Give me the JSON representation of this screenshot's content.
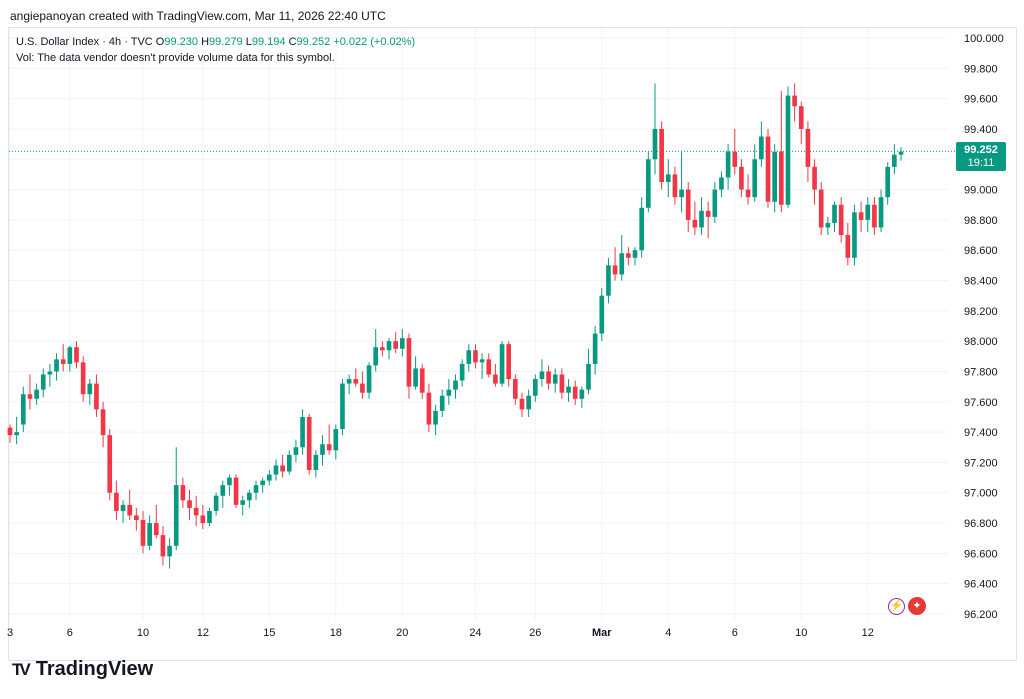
{
  "header": {
    "caption": "angiepanoyan created with TradingView.com, Mar 11, 2026 22:40 UTC"
  },
  "legend": {
    "symbol": "U.S. Dollar Index · 4h · TVC",
    "o_label": "O",
    "o_value": "99.230",
    "h_label": "H",
    "h_value": "99.279",
    "l_label": "L",
    "l_value": "99.194",
    "c_label": "C",
    "c_value": "99.252",
    "change": "+0.022 (+0.02%)",
    "vol_note": "Vol: The data vendor doesn't provide volume data for this symbol."
  },
  "last_price": {
    "price": "99.252",
    "countdown": "19:11",
    "value": 99.252
  },
  "colors": {
    "up": "#089981",
    "down": "#f23645",
    "grid": "#f0f3fa",
    "text": "#131722"
  },
  "icons": {
    "bolt": "lightning-icon",
    "flag": "us-flag-icon"
  },
  "branding": {
    "logo_text": "TradingView",
    "logo_mark": "TV"
  },
  "chart_data": {
    "type": "candlestick",
    "yaxis": {
      "ticks": [
        "100.000",
        "99.800",
        "99.600",
        "99.400",
        "99.200",
        "99.000",
        "98.800",
        "98.600",
        "98.400",
        "98.200",
        "98.000",
        "97.800",
        "97.600",
        "97.400",
        "97.200",
        "97.000",
        "96.800",
        "96.600",
        "96.400",
        "96.200"
      ],
      "range": [
        96.2,
        100.0
      ]
    },
    "xaxis": {
      "ticks": [
        "3",
        "6",
        "10",
        "12",
        "15",
        "18",
        "20",
        "24",
        "26",
        "Mar",
        "4",
        "6",
        "10",
        "12"
      ]
    },
    "ohlc": [
      [
        97.43,
        97.45,
        97.33,
        97.38
      ],
      [
        97.38,
        97.5,
        97.32,
        97.4
      ],
      [
        97.45,
        97.7,
        97.4,
        97.65
      ],
      [
        97.65,
        97.78,
        97.55,
        97.62
      ],
      [
        97.62,
        97.72,
        97.58,
        97.68
      ],
      [
        97.68,
        97.82,
        97.63,
        97.78
      ],
      [
        97.78,
        97.85,
        97.7,
        97.8
      ],
      [
        97.8,
        97.92,
        97.74,
        97.88
      ],
      [
        97.88,
        97.98,
        97.8,
        97.85
      ],
      [
        97.85,
        97.97,
        97.8,
        97.96
      ],
      [
        97.96,
        98.0,
        97.82,
        97.86
      ],
      [
        97.86,
        97.9,
        97.6,
        97.65
      ],
      [
        97.65,
        97.75,
        97.58,
        97.72
      ],
      [
        97.72,
        97.78,
        97.5,
        97.55
      ],
      [
        97.55,
        97.6,
        97.3,
        97.38
      ],
      [
        97.38,
        97.42,
        96.95,
        97.0
      ],
      [
        97.0,
        97.08,
        96.82,
        96.88
      ],
      [
        96.88,
        96.95,
        96.8,
        96.92
      ],
      [
        96.92,
        97.02,
        96.82,
        96.85
      ],
      [
        96.85,
        96.9,
        96.75,
        96.82
      ],
      [
        96.82,
        96.88,
        96.6,
        96.65
      ],
      [
        96.65,
        96.85,
        96.62,
        96.8
      ],
      [
        96.8,
        96.92,
        96.7,
        96.72
      ],
      [
        96.72,
        96.78,
        96.52,
        96.58
      ],
      [
        96.58,
        96.7,
        96.5,
        96.65
      ],
      [
        96.65,
        97.3,
        96.62,
        97.05
      ],
      [
        97.05,
        97.1,
        96.9,
        96.95
      ],
      [
        96.95,
        97.02,
        96.82,
        96.9
      ],
      [
        96.9,
        96.98,
        96.78,
        96.85
      ],
      [
        96.85,
        96.92,
        96.76,
        96.8
      ],
      [
        96.8,
        96.9,
        96.78,
        96.88
      ],
      [
        96.88,
        97.0,
        96.85,
        96.98
      ],
      [
        96.98,
        97.08,
        96.9,
        97.05
      ],
      [
        97.05,
        97.12,
        96.98,
        97.1
      ],
      [
        97.1,
        97.12,
        96.9,
        96.92
      ],
      [
        96.92,
        96.98,
        96.85,
        96.95
      ],
      [
        96.95,
        97.02,
        96.9,
        97.0
      ],
      [
        97.0,
        97.08,
        96.95,
        97.05
      ],
      [
        97.05,
        97.1,
        97.0,
        97.08
      ],
      [
        97.08,
        97.15,
        97.05,
        97.12
      ],
      [
        97.12,
        97.22,
        97.08,
        97.18
      ],
      [
        97.18,
        97.25,
        97.1,
        97.14
      ],
      [
        97.14,
        97.28,
        97.12,
        97.25
      ],
      [
        97.25,
        97.35,
        97.2,
        97.3
      ],
      [
        97.3,
        97.55,
        97.25,
        97.5
      ],
      [
        97.5,
        97.52,
        97.12,
        97.15
      ],
      [
        97.15,
        97.28,
        97.1,
        97.25
      ],
      [
        97.25,
        97.38,
        97.18,
        97.32
      ],
      [
        97.32,
        97.45,
        97.25,
        97.28
      ],
      [
        97.28,
        97.45,
        97.22,
        97.42
      ],
      [
        97.42,
        97.75,
        97.38,
        97.72
      ],
      [
        97.72,
        97.78,
        97.65,
        97.75
      ],
      [
        97.75,
        97.82,
        97.7,
        97.72
      ],
      [
        97.72,
        97.8,
        97.62,
        97.66
      ],
      [
        97.66,
        97.86,
        97.62,
        97.84
      ],
      [
        97.84,
        98.08,
        97.8,
        97.96
      ],
      [
        97.96,
        98.0,
        97.9,
        97.94
      ],
      [
        97.94,
        98.02,
        97.88,
        98.0
      ],
      [
        98.0,
        98.06,
        97.92,
        97.95
      ],
      [
        97.95,
        98.08,
        97.9,
        98.02
      ],
      [
        98.02,
        98.05,
        97.62,
        97.7
      ],
      [
        97.7,
        97.9,
        97.68,
        97.82
      ],
      [
        97.82,
        97.85,
        97.62,
        97.66
      ],
      [
        97.66,
        97.72,
        97.4,
        97.45
      ],
      [
        97.45,
        97.58,
        97.38,
        97.54
      ],
      [
        97.54,
        97.68,
        97.5,
        97.64
      ],
      [
        97.64,
        97.75,
        97.58,
        97.68
      ],
      [
        97.68,
        97.78,
        97.62,
        97.74
      ],
      [
        97.74,
        97.88,
        97.7,
        97.85
      ],
      [
        97.85,
        97.98,
        97.8,
        97.94
      ],
      [
        97.94,
        97.98,
        97.82,
        97.86
      ],
      [
        97.86,
        97.92,
        97.75,
        97.88
      ],
      [
        97.88,
        97.92,
        97.76,
        97.78
      ],
      [
        97.78,
        97.85,
        97.7,
        97.72
      ],
      [
        97.72,
        98.0,
        97.7,
        97.98
      ],
      [
        97.98,
        98.0,
        97.7,
        97.75
      ],
      [
        97.75,
        97.78,
        97.58,
        97.62
      ],
      [
        97.62,
        97.66,
        97.5,
        97.55
      ],
      [
        97.55,
        97.68,
        97.5,
        97.64
      ],
      [
        97.64,
        97.78,
        97.6,
        97.75
      ],
      [
        97.75,
        97.88,
        97.7,
        97.8
      ],
      [
        97.8,
        97.84,
        97.68,
        97.72
      ],
      [
        97.72,
        97.82,
        97.66,
        97.78
      ],
      [
        97.78,
        97.82,
        97.62,
        97.66
      ],
      [
        97.66,
        97.75,
        97.6,
        97.7
      ],
      [
        97.7,
        97.74,
        97.58,
        97.62
      ],
      [
        97.62,
        97.7,
        97.56,
        97.68
      ],
      [
        97.68,
        97.95,
        97.65,
        97.85
      ],
      [
        97.85,
        98.1,
        97.78,
        98.05
      ],
      [
        98.05,
        98.35,
        98.0,
        98.3
      ],
      [
        98.3,
        98.55,
        98.25,
        98.5
      ],
      [
        98.5,
        98.62,
        98.4,
        98.44
      ],
      [
        98.44,
        98.7,
        98.4,
        98.58
      ],
      [
        98.58,
        98.62,
        98.5,
        98.55
      ],
      [
        98.55,
        98.62,
        98.5,
        98.6
      ],
      [
        98.6,
        98.95,
        98.55,
        98.88
      ],
      [
        98.88,
        99.25,
        98.85,
        99.2
      ],
      [
        99.2,
        99.7,
        99.1,
        99.4
      ],
      [
        99.4,
        99.45,
        99.0,
        99.05
      ],
      [
        99.05,
        99.2,
        98.95,
        99.1
      ],
      [
        99.1,
        99.15,
        98.9,
        98.95
      ],
      [
        98.95,
        99.25,
        98.85,
        99.0
      ],
      [
        99.0,
        99.05,
        98.72,
        98.8
      ],
      [
        98.8,
        98.92,
        98.7,
        98.75
      ],
      [
        98.75,
        98.95,
        98.7,
        98.86
      ],
      [
        98.86,
        98.92,
        98.68,
        98.82
      ],
      [
        98.82,
        99.05,
        98.78,
        99.0
      ],
      [
        99.0,
        99.12,
        98.95,
        99.08
      ],
      [
        99.08,
        99.3,
        99.0,
        99.25
      ],
      [
        99.25,
        99.4,
        99.1,
        99.15
      ],
      [
        99.15,
        99.2,
        98.95,
        99.0
      ],
      [
        99.0,
        99.1,
        98.9,
        98.95
      ],
      [
        98.95,
        99.3,
        98.92,
        99.2
      ],
      [
        99.2,
        99.45,
        99.15,
        99.35
      ],
      [
        99.35,
        99.4,
        98.88,
        98.92
      ],
      [
        98.92,
        99.3,
        98.85,
        99.25
      ],
      [
        99.25,
        99.65,
        98.85,
        98.9
      ],
      [
        98.9,
        99.68,
        98.88,
        99.62
      ],
      [
        99.62,
        99.7,
        99.45,
        99.55
      ],
      [
        99.55,
        99.58,
        99.3,
        99.4
      ],
      [
        99.4,
        99.45,
        99.05,
        99.15
      ],
      [
        99.15,
        99.2,
        98.9,
        99.0
      ],
      [
        99.0,
        99.05,
        98.7,
        98.75
      ],
      [
        98.75,
        98.82,
        98.7,
        98.78
      ],
      [
        98.78,
        98.92,
        98.72,
        98.9
      ],
      [
        98.9,
        98.95,
        98.65,
        98.7
      ],
      [
        98.7,
        98.78,
        98.5,
        98.55
      ],
      [
        98.55,
        98.9,
        98.5,
        98.85
      ],
      [
        98.85,
        98.92,
        98.72,
        98.8
      ],
      [
        98.8,
        98.95,
        98.72,
        98.9
      ],
      [
        98.9,
        98.95,
        98.7,
        98.75
      ],
      [
        98.75,
        99.0,
        98.72,
        98.95
      ],
      [
        98.95,
        99.18,
        98.9,
        99.15
      ],
      [
        99.15,
        99.3,
        99.1,
        99.23
      ],
      [
        99.23,
        99.28,
        99.19,
        99.25
      ]
    ]
  }
}
